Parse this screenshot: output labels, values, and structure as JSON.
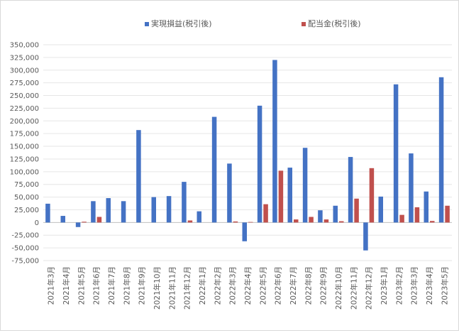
{
  "chart_data": {
    "type": "bar",
    "categories": [
      "2021年3月",
      "2021年4月",
      "2021年5月",
      "2021年6月",
      "2021年7月",
      "2021年8月",
      "2021年9月",
      "2021年10月",
      "2021年11月",
      "2021年12月",
      "2022年1月",
      "2022年2月",
      "2022年3月",
      "2022年4月",
      "2022年5月",
      "2022年6月",
      "2022年7月",
      "2022年8月",
      "2022年9月",
      "2022年10月",
      "2022年11月",
      "2022年12月",
      "2023年1月",
      "2023年2月",
      "2023年3月",
      "2023年4月",
      "2023年5月"
    ],
    "series": [
      {
        "name": "実現損益(税引後)",
        "color": "#4472C4",
        "values": [
          37000,
          13000,
          -9000,
          42000,
          48000,
          42000,
          182000,
          50000,
          52000,
          80000,
          22000,
          208000,
          116000,
          -37000,
          230000,
          320000,
          108000,
          147000,
          24000,
          33000,
          129000,
          -55000,
          51000,
          272000,
          136000,
          61000,
          286000
        ]
      },
      {
        "name": "配当金(税引後)",
        "color": "#C0504D",
        "values": [
          0,
          0,
          1500,
          11000,
          0,
          0,
          0,
          0,
          0,
          4000,
          0,
          0,
          2000,
          1000,
          36000,
          102000,
          6000,
          11000,
          6000,
          2500,
          47000,
          107000,
          0,
          15000,
          30000,
          3000,
          33000
        ]
      }
    ],
    "ylim": [
      -75000,
      350000
    ],
    "yticks": [
      "350,000",
      "325,000",
      "300,000",
      "275,000",
      "250,000",
      "225,000",
      "200,000",
      "175,000",
      "150,000",
      "125,000",
      "100,000",
      "75,000",
      "50,000",
      "25,000",
      "0",
      "-25,000",
      "-50,000",
      "-75,000"
    ],
    "ytick_values": [
      350000,
      325000,
      300000,
      275000,
      250000,
      225000,
      200000,
      175000,
      150000,
      125000,
      100000,
      75000,
      50000,
      25000,
      0,
      -25000,
      -50000,
      -75000
    ],
    "legend_position": "top-center",
    "grid": true,
    "title": "",
    "xlabel": "",
    "ylabel": ""
  }
}
